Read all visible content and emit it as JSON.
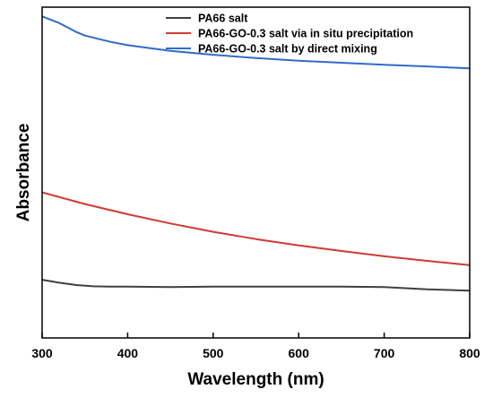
{
  "chart_data": {
    "type": "line",
    "title": "",
    "xlabel": "Wavelength (nm)",
    "ylabel": "Absorbance",
    "xlim": [
      300,
      800
    ],
    "ylim": [
      0,
      1
    ],
    "x_ticks": [
      300,
      400,
      500,
      600,
      700,
      800
    ],
    "y_ticks_shown": false,
    "grid": false,
    "legend_position": "top-right",
    "series": [
      {
        "name": "PA66 salt",
        "color": "#404040",
        "x": [
          300,
          320,
          340,
          360,
          380,
          400,
          450,
          500,
          550,
          600,
          650,
          700,
          750,
          800
        ],
        "y": [
          0.176,
          0.167,
          0.16,
          0.156,
          0.155,
          0.155,
          0.154,
          0.155,
          0.155,
          0.155,
          0.155,
          0.154,
          0.147,
          0.143
        ]
      },
      {
        "name": "PA66-GO-0.3 salt via in situ precipitation",
        "color": "#d03a32",
        "x": [
          300,
          350,
          400,
          450,
          500,
          550,
          600,
          650,
          700,
          750,
          800
        ],
        "y": [
          0.44,
          0.405,
          0.374,
          0.346,
          0.321,
          0.299,
          0.28,
          0.263,
          0.247,
          0.233,
          0.22
        ]
      },
      {
        "name": "PA66-GO-0.3 salt by direct mixing",
        "color": "#2f6bc8",
        "x": [
          300,
          320,
          340,
          350,
          380,
          400,
          450,
          500,
          550,
          600,
          650,
          700,
          750,
          800
        ],
        "y": [
          0.972,
          0.952,
          0.925,
          0.914,
          0.895,
          0.885,
          0.868,
          0.856,
          0.846,
          0.838,
          0.832,
          0.826,
          0.821,
          0.815
        ]
      }
    ]
  }
}
